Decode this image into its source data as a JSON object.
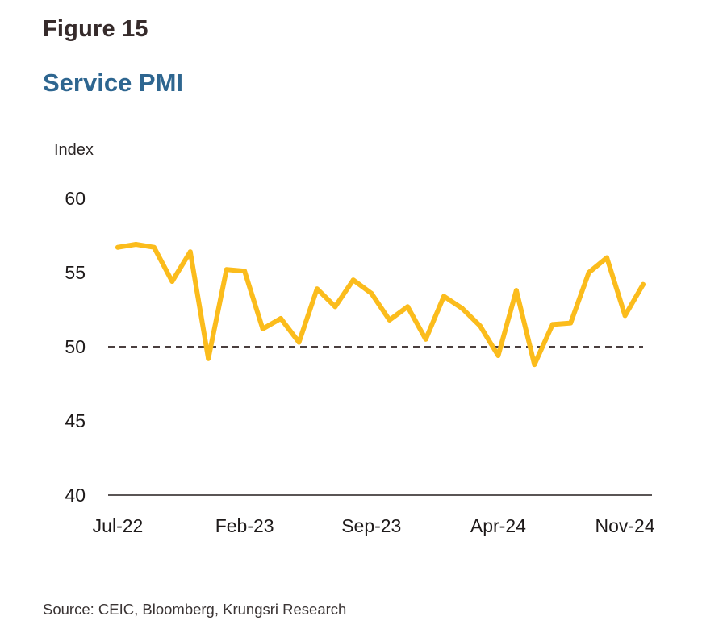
{
  "figure_label": "Figure 15",
  "title": "Service PMI",
  "source": "Source: CEIC, Bloomberg, Krungsri Research",
  "colors": {
    "line": "#fbbc1c",
    "title": "#2e6690",
    "reference_line": "#4a3f3f",
    "axis": "#5a5555"
  },
  "chart_data": {
    "type": "line",
    "title": "Service PMI",
    "xlabel": "",
    "ylabel": "Index",
    "ylim": [
      40,
      60
    ],
    "yticks": [
      40,
      45,
      50,
      55,
      60
    ],
    "ytick_labels": [
      "40",
      "45",
      "50",
      "55",
      "60"
    ],
    "grid": false,
    "legend": "none",
    "reference_line": {
      "y": 50,
      "style": "dashed"
    },
    "x": [
      "Jul-22",
      "Aug-22",
      "Sep-22",
      "Oct-22",
      "Nov-22",
      "Dec-22",
      "Jan-23",
      "Feb-23",
      "Mar-23",
      "Apr-23",
      "May-23",
      "Jun-23",
      "Jul-23",
      "Aug-23",
      "Sep-23",
      "Oct-23",
      "Nov-23",
      "Dec-23",
      "Jan-24",
      "Feb-24",
      "Mar-24",
      "Apr-24",
      "May-24",
      "Jun-24",
      "Jul-24",
      "Aug-24",
      "Sep-24",
      "Oct-24",
      "Nov-24",
      "Dec-24"
    ],
    "xtick_labels": [
      "Jul-22",
      "Feb-23",
      "Sep-23",
      "Apr-24",
      "Nov-24"
    ],
    "series": [
      {
        "name": "Service PMI",
        "values": [
          56.7,
          56.9,
          56.7,
          54.4,
          56.4,
          49.2,
          55.2,
          55.1,
          51.2,
          51.9,
          50.3,
          53.9,
          52.7,
          54.5,
          53.6,
          51.8,
          52.7,
          50.5,
          53.4,
          52.6,
          51.4,
          49.4,
          53.8,
          48.8,
          51.5,
          51.6,
          55.0,
          56.0,
          52.1,
          54.2
        ]
      }
    ]
  }
}
